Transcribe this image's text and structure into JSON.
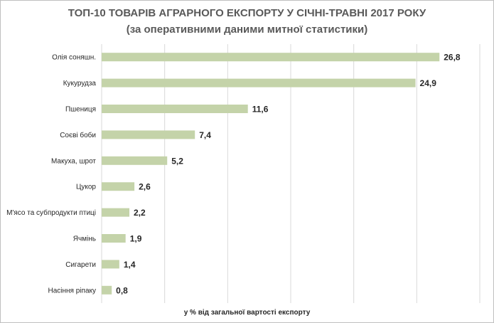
{
  "chart_data": {
    "type": "bar",
    "orientation": "horizontal",
    "title": "ТОП-10 ТОВАРІВ АГРАРНОГО ЕКСПОРТУ У СІЧНІ-ТРАВНІ 2017 РОКУ",
    "subtitle": "(за оперативними даними митної статистики)",
    "xlabel": "у % від  загальної вартості експорту",
    "ylabel": "",
    "categories": [
      "Олія соняшн.",
      "Кукурудза",
      "Пшениця",
      "Соєві боби",
      "Макуха, шрот",
      "Цукор",
      "М'ясо та  субпродукти птиці",
      "Ячмінь",
      "Сигарети",
      "Насіння ріпаку"
    ],
    "values": [
      26.8,
      24.9,
      11.6,
      7.4,
      5.2,
      2.6,
      2.2,
      1.9,
      1.4,
      0.8
    ],
    "value_labels": [
      "26,8",
      "24,9",
      "11,6",
      "7,4",
      "5,2",
      "2,6",
      "2,2",
      "1,9",
      "1,4",
      "0,8"
    ],
    "xlim": [
      0,
      30
    ],
    "grid": true,
    "colors": {
      "bar": "#c4d3a9",
      "grid": "#d9d9d9",
      "frame": "#bfbfbf"
    }
  }
}
